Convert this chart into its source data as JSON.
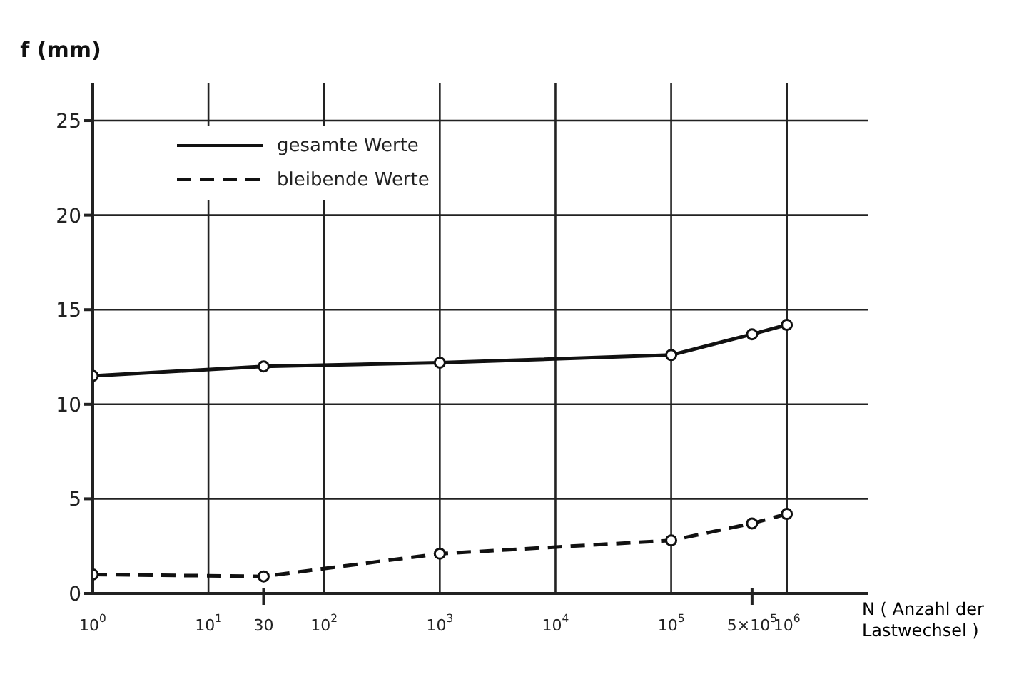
{
  "chart_data": {
    "type": "line",
    "xlabel": "N ( Anzahl der Lastwechsel )",
    "ylabel": "f (mm)",
    "x": [
      1,
      30,
      1000,
      100000,
      500000,
      1000000
    ],
    "series": [
      {
        "name": "gesamte Werte",
        "color": "#111111",
        "values": [
          11.5,
          12,
          12.2,
          12.6,
          13.7,
          14.2
        ],
        "line_style": "solid"
      },
      {
        "name": "bleibende Werte",
        "color": "#111111",
        "values": [
          1,
          0.9,
          2.1,
          2.8,
          3.7,
          4.2
        ],
        "line_style": "dashed"
      }
    ],
    "log": "x",
    "xlim": [
      1,
      5000000
    ],
    "ylim": [
      0,
      27
    ],
    "xticks": [
      {
        "value": 1,
        "label": "10$^{0}$"
      },
      {
        "value": 10,
        "label": "10$^{1}$"
      },
      {
        "value": 30,
        "label": "30"
      },
      {
        "value": 100,
        "label": "10$^{2}$"
      },
      {
        "value": 1000,
        "label": "10$^{3}$"
      },
      {
        "value": 10000,
        "label": "10$^{4}$"
      },
      {
        "value": 100000,
        "label": "10$^{5}$"
      },
      {
        "value": 500000,
        "label": "5×10$^{5}$"
      },
      {
        "value": 1000000,
        "label": "10$^{6}$"
      }
    ],
    "yticks": [
      0,
      5,
      10,
      15,
      20,
      25
    ],
    "grid": true,
    "legend": "top left",
    "marker": "circle"
  }
}
